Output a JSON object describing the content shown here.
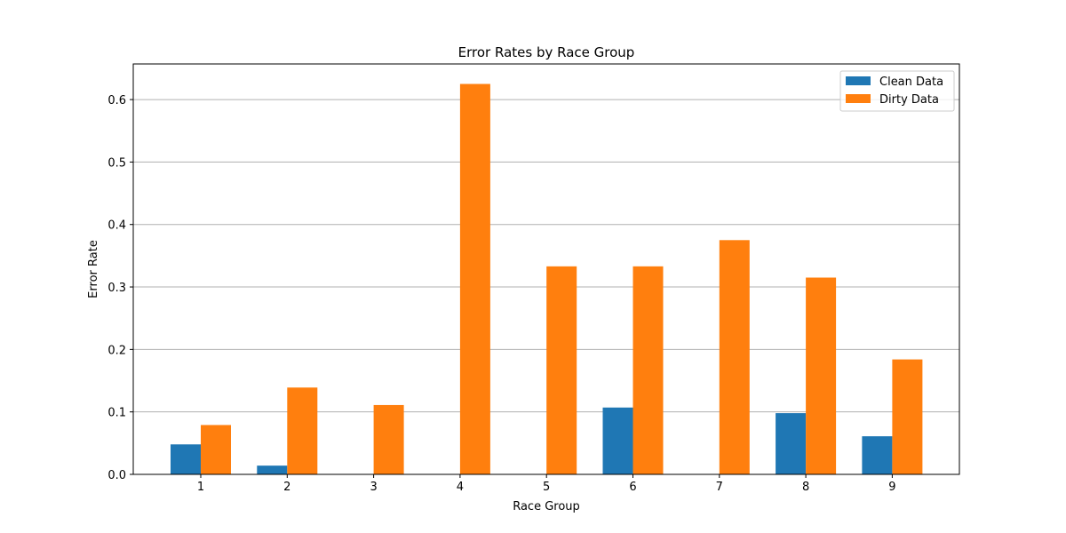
{
  "chart_data": {
    "type": "bar",
    "title": "Error Rates by Race Group",
    "xlabel": "Race Group",
    "ylabel": "Error Rate",
    "categories": [
      "1",
      "2",
      "3",
      "4",
      "5",
      "6",
      "7",
      "8",
      "9"
    ],
    "series": [
      {
        "name": "Clean Data",
        "color": "#1f77b4",
        "values": [
          0.048,
          0.014,
          0.0,
          0.0,
          0.0,
          0.107,
          0.0,
          0.098,
          0.061
        ]
      },
      {
        "name": "Dirty Data",
        "color": "#ff7f0e",
        "values": [
          0.079,
          0.139,
          0.111,
          0.625,
          0.333,
          0.333,
          0.375,
          0.315,
          0.184
        ]
      }
    ],
    "ylim": [
      0,
      0.657
    ],
    "yticks": [
      "0.0",
      "0.1",
      "0.2",
      "0.3",
      "0.4",
      "0.5",
      "0.6"
    ],
    "grid": "y-major",
    "legend_position": "top-right"
  }
}
